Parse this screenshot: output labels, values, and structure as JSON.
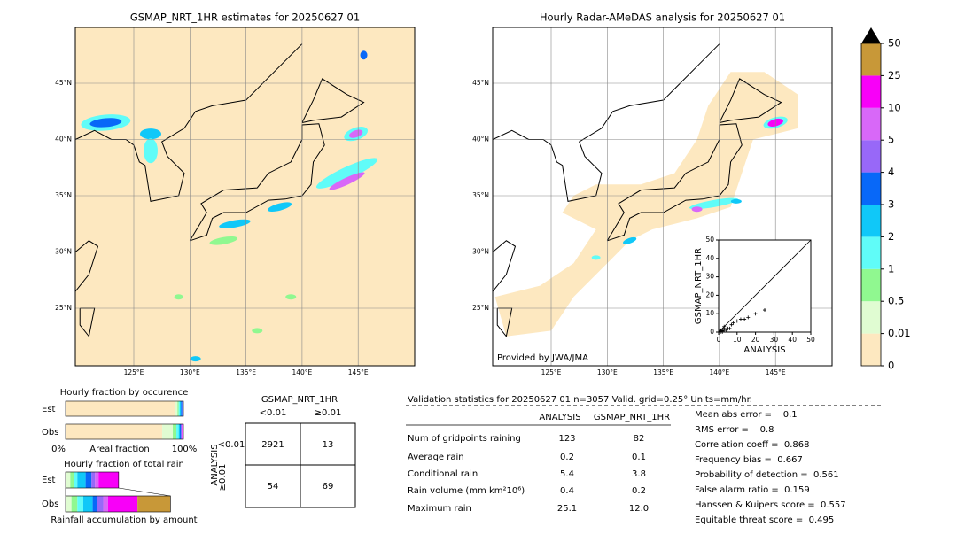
{
  "left_map": {
    "title": "GSMAP_NRT_1HR estimates for 20250627 01",
    "lat_labels": [
      "45°N",
      "40°N",
      "35°N",
      "30°N",
      "25°N"
    ],
    "lon_labels": [
      "125°E",
      "130°E",
      "135°E",
      "140°E",
      "145°E"
    ]
  },
  "right_map": {
    "title": "Hourly Radar-AMeDAS analysis for 20250627 01",
    "lat_labels": [
      "45°N",
      "40°N",
      "35°N",
      "30°N",
      "25°N"
    ],
    "lon_labels": [
      "125°E",
      "130°E",
      "135°E",
      "140°E",
      "145°E"
    ],
    "credit": "Provided by JWA/JMA"
  },
  "colorbar": {
    "levels": [
      0,
      0.01,
      0.5,
      1,
      2,
      3,
      4,
      5,
      10,
      25,
      50
    ],
    "colors": [
      "#fde8c0",
      "#e0fcd2",
      "#90f890",
      "#60fcf8",
      "#10c8f8",
      "#0868f8",
      "#9868f8",
      "#d868f8",
      "#f800f8",
      "#c89838"
    ],
    "over_color": "#000000"
  },
  "chart_data": {
    "type": "scatter",
    "xlabel": "ANALYSIS",
    "ylabel": "GSMAP_NRT_1HR",
    "xlim": [
      0,
      50
    ],
    "ylim": [
      0,
      50
    ],
    "xticks": [
      0,
      10,
      20,
      30,
      40,
      50
    ],
    "yticks": [
      0,
      10,
      20,
      30,
      40,
      50
    ],
    "x": [
      1,
      2,
      3,
      1,
      2,
      4,
      5,
      3,
      6,
      7,
      8,
      2,
      10,
      12,
      14,
      16,
      20,
      25,
      1,
      3
    ],
    "y": [
      1,
      1,
      2,
      0.5,
      0.5,
      1,
      2,
      3,
      2,
      4,
      5,
      0,
      6,
      7,
      7,
      8,
      10,
      12,
      0,
      1
    ]
  },
  "occurrence": {
    "title": "Hourly fraction by occurence",
    "rows": [
      "Est",
      "Obs"
    ],
    "axis_labels": [
      "0%",
      "Areal fraction",
      "100%"
    ],
    "est": [
      0.93,
      0.02,
      0.01,
      0.01,
      0.01,
      0.01,
      0.005,
      0.005,
      0,
      0
    ],
    "obs": [
      0.82,
      0.09,
      0.03,
      0.02,
      0.01,
      0.01,
      0.005,
      0.005,
      0.005,
      0.005
    ]
  },
  "total_rain": {
    "title": "Hourly fraction of total rain",
    "rows": [
      "Est",
      "Obs"
    ],
    "footer": "Rainfall accumulation by amount",
    "est": [
      0,
      0.04,
      0.03,
      0.03,
      0.07,
      0.05,
      0.03,
      0.03,
      0.17,
      0
    ],
    "obs": [
      0,
      0.05,
      0.05,
      0.05,
      0.08,
      0.04,
      0.05,
      0.04,
      0.25,
      0.28
    ]
  },
  "contingency": {
    "title": "GSMAP_NRT_1HR",
    "col_headers": [
      "<0.01",
      "≥0.01"
    ],
    "row_axis": "ANALYSIS",
    "row_headers": [
      "<0.01",
      "≥0.01"
    ],
    "cells": [
      [
        "2921",
        "13"
      ],
      [
        "54",
        "69"
      ]
    ]
  },
  "validation": {
    "header": "Validation statistics for 20250627 01  n=3057 Valid. grid=0.25° Units=mm/hr.",
    "col_headers": [
      "ANALYSIS",
      "GSMAP_NRT_1HR"
    ],
    "rows": [
      [
        "Num of gridpoints raining",
        "123",
        "82"
      ],
      [
        "Average rain",
        "0.2",
        "0.1"
      ],
      [
        "Conditional rain",
        "5.4",
        "3.8"
      ],
      [
        "Rain volume (mm km²10⁶)",
        "0.4",
        "0.2"
      ],
      [
        "Maximum rain",
        "25.1",
        "12.0"
      ]
    ],
    "scores": [
      "Mean abs error =    0.1",
      "RMS error =    0.8",
      "Correlation coeff =  0.868",
      "Frequency bias =  0.667",
      "Probability of detection =  0.561",
      "False alarm ratio =  0.159",
      "Hanssen & Kuipers score =  0.557",
      "Equitable threat score =  0.495"
    ]
  }
}
